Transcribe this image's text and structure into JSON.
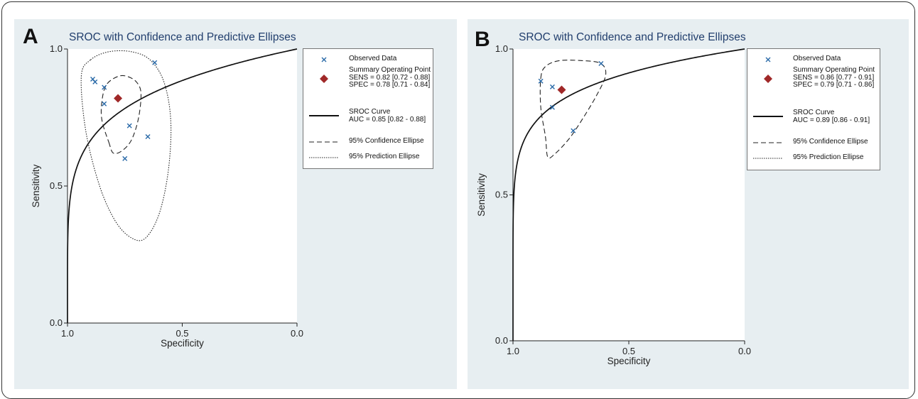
{
  "chart_data": [
    {
      "panel": "A",
      "type": "scatter",
      "title": "SROC with Confidence and Predictive Ellipses",
      "xlabel": "Specificity",
      "ylabel": "Sensitivity",
      "x_reversed": true,
      "xlim": [
        1.0,
        0.0
      ],
      "ylim": [
        0.0,
        1.0
      ],
      "xticks": [
        "1.0",
        "0.5",
        "0.0"
      ],
      "yticks": [
        "0.0",
        "0.5",
        "1.0"
      ],
      "grid": false,
      "legend_position": "right",
      "observed_data": [
        {
          "spec": 0.89,
          "sens": 0.89
        },
        {
          "spec": 0.88,
          "sens": 0.88
        },
        {
          "spec": 0.84,
          "sens": 0.86
        },
        {
          "spec": 0.84,
          "sens": 0.8
        },
        {
          "spec": 0.73,
          "sens": 0.72
        },
        {
          "spec": 0.65,
          "sens": 0.68
        },
        {
          "spec": 0.75,
          "sens": 0.6
        },
        {
          "spec": 0.62,
          "sens": 0.95
        }
      ],
      "summary_point": {
        "spec": 0.78,
        "sens": 0.82
      },
      "auc": 0.85,
      "legend": {
        "observed": "Observed Data",
        "summary_lines": [
          "Summary Operating Point",
          "SENS = 0.82 [0.72 - 0.88]",
          "SPEC = 0.78 [0.71 - 0.84]"
        ],
        "sroc_lines": [
          "SROC Curve",
          "AUC = 0.85 [0.82 - 0.88]"
        ],
        "conf": "95% Confidence Ellipse",
        "pred": "95% Prediction Ellipse"
      }
    },
    {
      "panel": "B",
      "type": "scatter",
      "title": "SROC with Confidence and Predictive Ellipses",
      "xlabel": "Specificity",
      "ylabel": "Sensitivity",
      "x_reversed": true,
      "xlim": [
        1.0,
        0.0
      ],
      "ylim": [
        0.0,
        1.0
      ],
      "xticks": [
        "1.0",
        "0.5",
        "0.0"
      ],
      "yticks": [
        "0.0",
        "0.5",
        "1.0"
      ],
      "grid": false,
      "legend_position": "right",
      "observed_data": [
        {
          "spec": 0.88,
          "sens": 0.89
        },
        {
          "spec": 0.83,
          "sens": 0.87
        },
        {
          "spec": 0.83,
          "sens": 0.8
        },
        {
          "spec": 0.74,
          "sens": 0.72
        },
        {
          "spec": 0.62,
          "sens": 0.95
        }
      ],
      "summary_point": {
        "spec": 0.79,
        "sens": 0.86
      },
      "auc": 0.89,
      "legend": {
        "observed": "Observed Data",
        "summary_lines": [
          "Summary Operating Point",
          "SENS = 0.86 [0.77 - 0.91]",
          "SPEC = 0.79 [0.71 - 0.86]"
        ],
        "sroc_lines": [
          "SROC Curve",
          "AUC = 0.89 [0.86 - 0.91]"
        ],
        "conf": "95% Confidence Ellipse",
        "pred": "95% Prediction Ellipse"
      }
    }
  ],
  "panels": {
    "a": {
      "letter": "A",
      "title": "SROC with Confidence and Predictive Ellipses"
    },
    "b": {
      "letter": "B",
      "title": "SROC with Confidence and Predictive Ellipses"
    }
  },
  "colors": {
    "panel_bg": "#e7eef1",
    "title": "#213e6d",
    "observed_marker": "#2a6aa8",
    "summary_marker": "#a02828",
    "curve": "#111111"
  },
  "icons": {
    "observed": "x-marker-icon",
    "summary": "diamond-marker-icon"
  }
}
